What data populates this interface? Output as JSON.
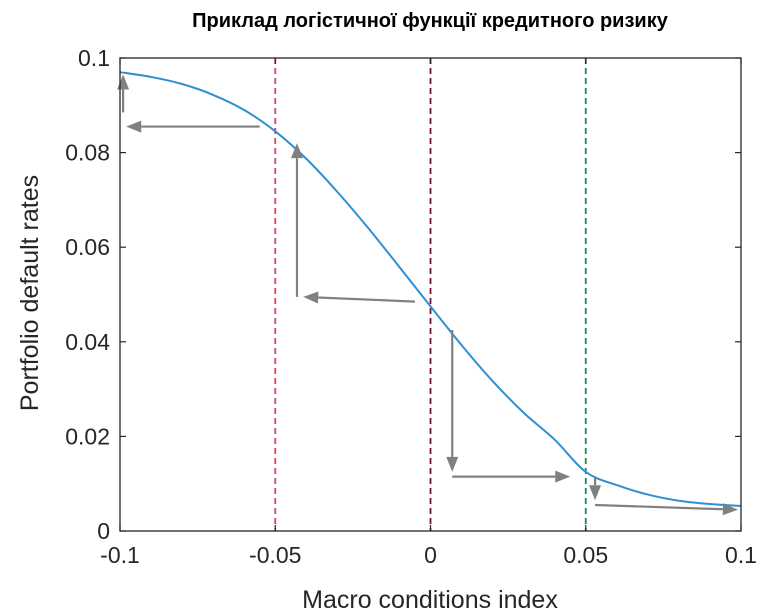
{
  "chart_data": {
    "type": "line",
    "title": "Приклад логістичної функції кредитного ризику",
    "xlabel": "Macro conditions index",
    "ylabel": "Portfolio default rates",
    "xlim": [
      -0.1,
      0.1
    ],
    "ylim": [
      0,
      0.1
    ],
    "xticks": [
      -0.1,
      -0.05,
      0,
      0.05,
      0.1
    ],
    "xtick_labels": [
      "-0.1",
      "-0.05",
      "0",
      "0.05",
      "0.1"
    ],
    "yticks": [
      0,
      0.02,
      0.04,
      0.06,
      0.08,
      0.1
    ],
    "ytick_labels": [
      "0",
      "0.02",
      "0.04",
      "0.06",
      "0.08",
      "0.1"
    ],
    "grid": false,
    "series": [
      {
        "color": "#2f8fd2",
        "x": [
          -0.1,
          -0.09,
          -0.08,
          -0.07,
          -0.06,
          -0.05,
          -0.04,
          -0.03,
          -0.02,
          -0.01,
          0,
          0.01,
          0.02,
          0.03,
          0.04,
          0.05,
          0.06,
          0.07,
          0.08,
          0.09,
          0.1
        ],
        "y": [
          0.097,
          0.096,
          0.0945,
          0.0922,
          0.089,
          0.0845,
          0.0787,
          0.0717,
          0.064,
          0.0558,
          0.0475,
          0.0393,
          0.0317,
          0.025,
          0.0193,
          0.0125,
          0.0097,
          0.0077,
          0.0064,
          0.0057,
          0.0053
        ]
      }
    ],
    "vertical_lines": [
      {
        "x": -0.05,
        "color": "#e0405a",
        "style": "dashed"
      },
      {
        "x": 0,
        "color": "#7a1030",
        "style": "dashed"
      },
      {
        "x": 0.05,
        "color": "#1a8a4a",
        "style": "dashed"
      }
    ],
    "arrows": [
      {
        "from": [
          -0.099,
          0.0885
        ],
        "to": [
          -0.099,
          0.0965
        ]
      },
      {
        "from": [
          -0.055,
          0.0855
        ],
        "to": [
          -0.098,
          0.0855
        ]
      },
      {
        "from": [
          -0.043,
          0.0495
        ],
        "to": [
          -0.043,
          0.082
        ]
      },
      {
        "from": [
          -0.005,
          0.0485
        ],
        "to": [
          -0.041,
          0.0495
        ]
      },
      {
        "from": [
          0.007,
          0.0425
        ],
        "to": [
          0.007,
          0.0125
        ]
      },
      {
        "from": [
          0.007,
          0.0115
        ],
        "to": [
          0.045,
          0.0115
        ]
      },
      {
        "from": [
          0.053,
          0.0115
        ],
        "to": [
          0.053,
          0.0065
        ]
      },
      {
        "from": [
          0.053,
          0.0055
        ],
        "to": [
          0.099,
          0.0045
        ]
      }
    ],
    "colors": {
      "curve": "#2f8fd2",
      "arrow": "#808080",
      "axis": "#262626"
    }
  }
}
